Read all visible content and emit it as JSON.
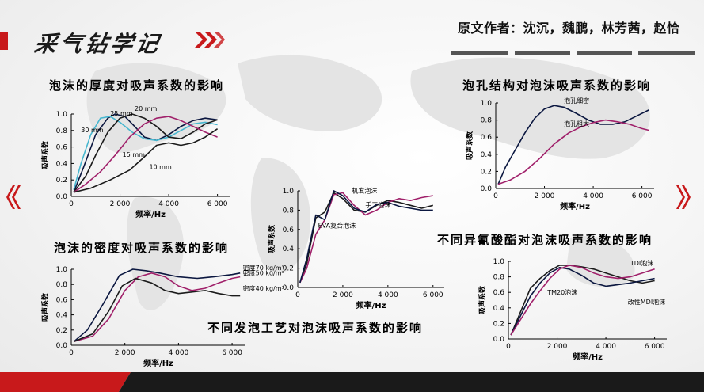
{
  "header": {
    "brand": "采气钻学记",
    "author": "原文作者：沈沉，魏鹏，林芳茜，赵恰"
  },
  "colors": {
    "accent": "#c8191b",
    "dark": "#1b1b1b",
    "magenta": "#a0206a",
    "navy": "#0b1740",
    "cyan": "#48b7d0"
  },
  "nav": {
    "prev_icon": "chevron-left-icon",
    "next_icon": "chevron-right-icon"
  },
  "chart_data": [
    {
      "id": "thickness",
      "type": "line",
      "title": "泡沫的厚度对吸声系数的影响",
      "xlabel": "频率/Hz",
      "ylabel": "吸声系数",
      "xlim": [
        0,
        6500
      ],
      "ylim": [
        0,
        1.0
      ],
      "xticks": [
        "0",
        "2 000",
        "4 000",
        "6 000"
      ],
      "yticks": [
        "0.0",
        "0.2",
        "0.4",
        "0.6",
        "0.8",
        "1.0"
      ],
      "series": [
        {
          "name": "25 mm",
          "color": "#0b1740",
          "x": [
            100,
            500,
            1000,
            1500,
            1800,
            2200,
            2600,
            3000,
            3500,
            4000,
            4500,
            5000,
            5500,
            6000
          ],
          "y": [
            0.05,
            0.35,
            0.75,
            0.95,
            1.0,
            0.97,
            0.85,
            0.72,
            0.68,
            0.75,
            0.85,
            0.92,
            0.95,
            0.93
          ]
        },
        {
          "name": "30 mm",
          "color": "#48b7d0",
          "x": [
            100,
            400,
            800,
            1200,
            1600,
            2000,
            2500,
            3000,
            3500,
            4000,
            4500,
            5000,
            5500,
            6000
          ],
          "y": [
            0.08,
            0.4,
            0.75,
            0.95,
            0.97,
            0.9,
            0.78,
            0.7,
            0.68,
            0.72,
            0.8,
            0.88,
            0.9,
            0.87
          ]
        },
        {
          "name": "20 mm",
          "color": "#1b1b1b",
          "x": [
            100,
            600,
            1000,
            1500,
            2000,
            2500,
            3000,
            3500,
            4000,
            4500,
            5000,
            5500,
            6000
          ],
          "y": [
            0.05,
            0.25,
            0.5,
            0.78,
            0.95,
            1.0,
            0.95,
            0.85,
            0.72,
            0.7,
            0.78,
            0.88,
            0.93
          ]
        },
        {
          "name": "15 mm",
          "color": "#a0206a",
          "x": [
            100,
            600,
            1200,
            1800,
            2400,
            3000,
            3500,
            4000,
            4500,
            5000,
            5500,
            6000
          ],
          "y": [
            0.05,
            0.15,
            0.3,
            0.5,
            0.72,
            0.88,
            0.95,
            0.97,
            0.92,
            0.85,
            0.78,
            0.72
          ]
        },
        {
          "name": "10 mm",
          "color": "#1b1b1b",
          "x": [
            100,
            800,
            1600,
            2400,
            3000,
            3500,
            4000,
            4500,
            5000,
            5500,
            6000
          ],
          "y": [
            0.05,
            0.1,
            0.2,
            0.32,
            0.48,
            0.62,
            0.65,
            0.62,
            0.65,
            0.72,
            0.82
          ]
        }
      ],
      "annotations": [
        "25 mm",
        "20 mm",
        "30 mm",
        "15 mm",
        "10 mm"
      ]
    },
    {
      "id": "density",
      "type": "line",
      "title": "泡沫的密度对吸声系数的影响",
      "xlabel": "频率/Hz",
      "ylabel": "吸声系数",
      "xlim": [
        0,
        6500
      ],
      "ylim": [
        0,
        1.0
      ],
      "xticks": [
        "0",
        "2 000",
        "4 000",
        "6 000"
      ],
      "yticks": [
        "0.0",
        "0.2",
        "0.4",
        "0.6",
        "0.8",
        "1.0"
      ],
      "series": [
        {
          "name": "密度70 kg/m³",
          "color": "#0b1740",
          "x": [
            100,
            600,
            1200,
            1800,
            2300,
            2800,
            3300,
            4000,
            4700,
            5300,
            6000,
            6300
          ],
          "y": [
            0.05,
            0.2,
            0.55,
            0.92,
            1.0,
            0.98,
            0.95,
            0.9,
            0.88,
            0.9,
            0.93,
            0.95
          ]
        },
        {
          "name": "密度50 kg/m³",
          "color": "#a0206a",
          "x": [
            100,
            800,
            1400,
            2000,
            2500,
            3000,
            3500,
            4000,
            4500,
            5000,
            5500,
            6000,
            6300
          ],
          "y": [
            0.05,
            0.12,
            0.35,
            0.72,
            0.9,
            0.95,
            0.9,
            0.78,
            0.72,
            0.75,
            0.82,
            0.88,
            0.9
          ]
        },
        {
          "name": "密度40 kg/m³",
          "color": "#1b1b1b",
          "x": [
            100,
            800,
            1400,
            1900,
            2400,
            3000,
            3500,
            4000,
            4500,
            5000,
            5500,
            6000,
            6300
          ],
          "y": [
            0.05,
            0.15,
            0.45,
            0.78,
            0.88,
            0.82,
            0.72,
            0.68,
            0.7,
            0.72,
            0.68,
            0.65,
            0.65
          ]
        }
      ],
      "annotations": [
        "密度70 kg/m³",
        "密度50 kg/m³",
        "密度40 kg/m³"
      ]
    },
    {
      "id": "process",
      "type": "line",
      "title": "不同发泡工艺对泡沫吸声系数的影响",
      "xlabel": "频率/Hz",
      "ylabel": "吸声系数",
      "xlim": [
        0,
        6500
      ],
      "ylim": [
        0,
        1.0
      ],
      "xticks": [
        "0",
        "2 000",
        "4 000",
        "6 000"
      ],
      "yticks": [
        "0.0",
        "0.2",
        "0.4",
        "0.6",
        "0.8",
        "1.0"
      ],
      "series": [
        {
          "name": "机发泡沫",
          "color": "#1b1b1b",
          "x": [
            100,
            400,
            800,
            1200,
            1600,
            2000,
            2500,
            3000,
            3500,
            4000,
            4500,
            5000,
            5500,
            6000
          ],
          "y": [
            0.05,
            0.25,
            0.72,
            0.78,
            0.98,
            0.92,
            0.8,
            0.78,
            0.85,
            0.9,
            0.88,
            0.85,
            0.82,
            0.85
          ]
        },
        {
          "name": "手工泡沫",
          "color": "#a0206a",
          "x": [
            100,
            400,
            800,
            1200,
            1600,
            2000,
            2500,
            3000,
            3500,
            4000,
            4500,
            5000,
            5500,
            6000
          ],
          "y": [
            0.05,
            0.2,
            0.55,
            0.7,
            0.96,
            0.98,
            0.85,
            0.75,
            0.8,
            0.88,
            0.92,
            0.9,
            0.93,
            0.95
          ]
        },
        {
          "name": "EVA复合泡沫",
          "color": "#0b1740",
          "x": [
            100,
            400,
            800,
            1200,
            1600,
            2000,
            2500,
            3000,
            3500,
            4000,
            4500,
            5000,
            5500,
            6000
          ],
          "y": [
            0.05,
            0.3,
            0.75,
            0.7,
            1.0,
            0.95,
            0.82,
            0.78,
            0.86,
            0.88,
            0.84,
            0.82,
            0.8,
            0.8
          ]
        }
      ],
      "annotations": [
        "机发泡沫",
        "手工泡沫",
        "EVA复合泡沫"
      ]
    },
    {
      "id": "pore",
      "type": "line",
      "title": "泡孔结构对泡沫吸声系数的影响",
      "xlabel": "频率/Hz",
      "ylabel": "吸声系数",
      "xlim": [
        0,
        6500
      ],
      "ylim": [
        0,
        1.0
      ],
      "xticks": [
        "0",
        "2 000",
        "4 000",
        "6 000"
      ],
      "yticks": [
        "0.0",
        "0.2",
        "0.4",
        "0.6",
        "0.8",
        "1.0"
      ],
      "series": [
        {
          "name": "泡孔细密",
          "color": "#0b1740",
          "x": [
            100,
            400,
            800,
            1200,
            1600,
            2000,
            2400,
            2800,
            3300,
            3800,
            4300,
            4800,
            5300,
            5800,
            6300
          ],
          "y": [
            0.05,
            0.25,
            0.45,
            0.65,
            0.82,
            0.93,
            0.97,
            0.95,
            0.88,
            0.8,
            0.75,
            0.75,
            0.78,
            0.85,
            0.92
          ]
        },
        {
          "name": "泡孔粗大",
          "color": "#a0206a",
          "x": [
            100,
            600,
            1200,
            1800,
            2400,
            3000,
            3500,
            4000,
            4500,
            5000,
            5500,
            6000,
            6300
          ],
          "y": [
            0.05,
            0.1,
            0.2,
            0.35,
            0.52,
            0.65,
            0.72,
            0.77,
            0.8,
            0.78,
            0.75,
            0.7,
            0.68
          ]
        }
      ],
      "annotations": [
        "泡孔细密",
        "泡孔粗大"
      ]
    },
    {
      "id": "isocyanate",
      "type": "line",
      "title": "不同异氰酸酯对泡沫吸声系数的影响",
      "xlabel": "频率/Hz",
      "ylabel": "吸声系数",
      "xlim": [
        0,
        6500
      ],
      "ylim": [
        0,
        1.0
      ],
      "xticks": [
        "0",
        "2 000",
        "4 000",
        "6 000"
      ],
      "yticks": [
        "0.0",
        "0.2",
        "0.4",
        "0.6",
        "0.8",
        "1.0"
      ],
      "series": [
        {
          "name": "TDI泡沫",
          "color": "#1b1b1b",
          "x": [
            100,
            500,
            900,
            1300,
            1700,
            2100,
            2500,
            3000,
            3500,
            4000,
            4500,
            5000,
            5500,
            6000
          ],
          "y": [
            0.05,
            0.35,
            0.65,
            0.78,
            0.88,
            0.95,
            0.95,
            0.93,
            0.9,
            0.85,
            0.8,
            0.75,
            0.72,
            0.75
          ]
        },
        {
          "name": "TM20泡沫",
          "color": "#0b1740",
          "x": [
            100,
            500,
            900,
            1300,
            1700,
            2100,
            2500,
            3000,
            3500,
            4000,
            4500,
            5000,
            5500,
            6000
          ],
          "y": [
            0.05,
            0.3,
            0.55,
            0.72,
            0.85,
            0.92,
            0.9,
            0.82,
            0.72,
            0.68,
            0.7,
            0.72,
            0.75,
            0.78
          ]
        },
        {
          "name": "改性MDI泡沫",
          "color": "#a0206a",
          "x": [
            100,
            500,
            900,
            1300,
            1700,
            2100,
            2500,
            3000,
            3500,
            4000,
            4500,
            5000,
            5500,
            6000
          ],
          "y": [
            0.05,
            0.25,
            0.45,
            0.62,
            0.78,
            0.9,
            0.95,
            0.92,
            0.85,
            0.8,
            0.78,
            0.8,
            0.85,
            0.9
          ]
        }
      ],
      "annotations": [
        "TDI泡沫",
        "TM20泡沫",
        "改性MDI泡沫"
      ]
    }
  ]
}
